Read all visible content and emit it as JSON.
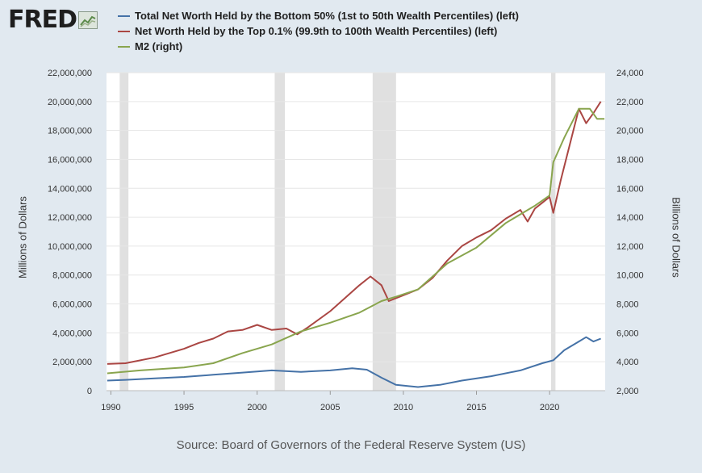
{
  "brand": {
    "logo_text": "FRED",
    "logo_icon": "line-graph-icon"
  },
  "source": "Source: Board of Governors of the Federal Reserve System (US)",
  "chart_data": {
    "type": "line",
    "legend_position": "top",
    "grid": true,
    "ylabel_left": "Millions of Dollars",
    "ylabel_right": "Billions of Dollars",
    "xlim": [
      1989.7,
      2023.8
    ],
    "ylim_left": [
      0,
      22000000
    ],
    "ylim_right": [
      2000,
      24000
    ],
    "x_ticks": [
      1990,
      1995,
      2000,
      2005,
      2010,
      2015,
      2020
    ],
    "y_ticks_left": [
      {
        "v": 0,
        "label": "0"
      },
      {
        "v": 2000000,
        "label": "2,000,000"
      },
      {
        "v": 4000000,
        "label": "4,000,000"
      },
      {
        "v": 6000000,
        "label": "6,000,000"
      },
      {
        "v": 8000000,
        "label": "8,000,000"
      },
      {
        "v": 10000000,
        "label": "10,000,000"
      },
      {
        "v": 12000000,
        "label": "12,000,000"
      },
      {
        "v": 14000000,
        "label": "14,000,000"
      },
      {
        "v": 16000000,
        "label": "16,000,000"
      },
      {
        "v": 18000000,
        "label": "18,000,000"
      },
      {
        "v": 20000000,
        "label": "20,000,000"
      },
      {
        "v": 22000000,
        "label": "22,000,000"
      }
    ],
    "y_ticks_right": [
      {
        "v": 2000,
        "label": "2,000"
      },
      {
        "v": 4000,
        "label": "4,000"
      },
      {
        "v": 6000,
        "label": "6,000"
      },
      {
        "v": 8000,
        "label": "8,000"
      },
      {
        "v": 10000,
        "label": "10,000"
      },
      {
        "v": 12000,
        "label": "12,000"
      },
      {
        "v": 14000,
        "label": "14,000"
      },
      {
        "v": 16000,
        "label": "16,000"
      },
      {
        "v": 18000,
        "label": "18,000"
      },
      {
        "v": 20000,
        "label": "20,000"
      },
      {
        "v": 22000,
        "label": "22,000"
      },
      {
        "v": 24000,
        "label": "24,000"
      }
    ],
    "recessions": [
      [
        1990.6,
        1991.2
      ],
      [
        2001.2,
        2001.9
      ],
      [
        2007.9,
        2009.5
      ],
      [
        2020.1,
        2020.4
      ]
    ],
    "series": [
      {
        "name": "Total Net Worth Held by the Bottom 50% (1st to 50th Wealth Percentiles) (left)",
        "axis": "left",
        "color": "#4572a7",
        "points": [
          [
            1989.75,
            700000
          ],
          [
            1991,
            750000
          ],
          [
            1993,
            850000
          ],
          [
            1995,
            950000
          ],
          [
            1997,
            1100000
          ],
          [
            1999,
            1250000
          ],
          [
            2001,
            1400000
          ],
          [
            2003,
            1300000
          ],
          [
            2005,
            1400000
          ],
          [
            2006.5,
            1550000
          ],
          [
            2007.5,
            1450000
          ],
          [
            2008.5,
            900000
          ],
          [
            2009.5,
            400000
          ],
          [
            2011,
            250000
          ],
          [
            2012.5,
            400000
          ],
          [
            2014,
            700000
          ],
          [
            2016,
            1000000
          ],
          [
            2018,
            1400000
          ],
          [
            2019.5,
            1900000
          ],
          [
            2020.25,
            2100000
          ],
          [
            2021,
            2800000
          ],
          [
            2022,
            3400000
          ],
          [
            2022.5,
            3700000
          ],
          [
            2023,
            3400000
          ],
          [
            2023.5,
            3600000
          ]
        ]
      },
      {
        "name": "Net Worth Held by the Top 0.1% (99.9th to 100th Wealth Percentiles) (left)",
        "axis": "left",
        "color": "#aa4643",
        "points": [
          [
            1989.75,
            1850000
          ],
          [
            1991,
            1900000
          ],
          [
            1993,
            2300000
          ],
          [
            1995,
            2900000
          ],
          [
            1996,
            3300000
          ],
          [
            1997,
            3600000
          ],
          [
            1998,
            4100000
          ],
          [
            1999,
            4200000
          ],
          [
            2000,
            4550000
          ],
          [
            2001,
            4200000
          ],
          [
            2002,
            4300000
          ],
          [
            2002.75,
            3900000
          ],
          [
            2003.5,
            4400000
          ],
          [
            2005,
            5500000
          ],
          [
            2006,
            6400000
          ],
          [
            2007,
            7300000
          ],
          [
            2007.75,
            7900000
          ],
          [
            2008.5,
            7300000
          ],
          [
            2009,
            6200000
          ],
          [
            2010,
            6600000
          ],
          [
            2011,
            7000000
          ],
          [
            2012,
            7800000
          ],
          [
            2013,
            9000000
          ],
          [
            2014,
            10000000
          ],
          [
            2015,
            10600000
          ],
          [
            2016,
            11100000
          ],
          [
            2017,
            11900000
          ],
          [
            2018,
            12500000
          ],
          [
            2018.5,
            11700000
          ],
          [
            2019,
            12600000
          ],
          [
            2019.5,
            13000000
          ],
          [
            2020,
            13400000
          ],
          [
            2020.25,
            12300000
          ],
          [
            2020.75,
            14500000
          ],
          [
            2021.5,
            17500000
          ],
          [
            2022,
            19500000
          ],
          [
            2022.5,
            18500000
          ],
          [
            2023,
            19200000
          ],
          [
            2023.5,
            20000000
          ]
        ]
      },
      {
        "name": "M2 (right)",
        "axis": "right",
        "color": "#89a54e",
        "points": [
          [
            1989.75,
            3200
          ],
          [
            1992,
            3400
          ],
          [
            1995,
            3600
          ],
          [
            1997,
            3900
          ],
          [
            1999,
            4600
          ],
          [
            2001,
            5200
          ],
          [
            2003,
            6100
          ],
          [
            2005,
            6700
          ],
          [
            2007,
            7400
          ],
          [
            2008.5,
            8200
          ],
          [
            2009.5,
            8500
          ],
          [
            2011,
            9000
          ],
          [
            2013,
            10800
          ],
          [
            2015,
            11900
          ],
          [
            2017,
            13600
          ],
          [
            2019,
            14800
          ],
          [
            2020,
            15500
          ],
          [
            2020.25,
            17800
          ],
          [
            2021,
            19500
          ],
          [
            2022,
            21500
          ],
          [
            2022.75,
            21500
          ],
          [
            2023.25,
            20800
          ],
          [
            2023.75,
            20800
          ]
        ]
      }
    ]
  }
}
